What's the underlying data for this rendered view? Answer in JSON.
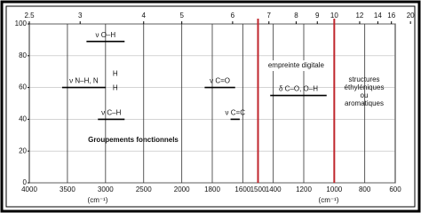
{
  "chart_data": {
    "type": "range",
    "xlabel": "(cm⁻¹)",
    "xlim": [
      4000,
      600
    ],
    "x_scale_break": 2000,
    "xticks": [
      4000,
      3500,
      3000,
      2500,
      2000,
      1800,
      1600,
      1500,
      1400,
      1200,
      1000,
      800,
      600
    ],
    "x2ticks": [
      2.5,
      3,
      4,
      5,
      6,
      7,
      8,
      9,
      10,
      12,
      14,
      16,
      20
    ],
    "ylim": [
      0,
      100
    ],
    "yticks": [
      0,
      20,
      40,
      60,
      80,
      100
    ],
    "grid": true,
    "color": "#000000",
    "marker_color": "#c0262d",
    "markers": [
      1500,
      1000
    ],
    "series": [
      {
        "name": "ν O–H",
        "x": [
          3250,
          2750
        ],
        "y": 89
      },
      {
        "name": "ν N–H, N",
        "x": [
          3570,
          3000
        ],
        "y": 60
      },
      {
        "name": "ν C–H",
        "x": [
          3100,
          2750
        ],
        "y": 40
      },
      {
        "name": "ν C=O",
        "x": [
          1850,
          1650
        ],
        "y": 60
      },
      {
        "name": "ν C=C",
        "x": [
          1680,
          1620
        ],
        "y": 40
      },
      {
        "name": "δ C–O, O–H",
        "x": [
          1420,
          1050
        ],
        "y": 55
      }
    ],
    "nh_marks": [
      "H",
      "H"
    ],
    "annotations": [
      "empreinte digitale",
      "Groupements fonctionnels",
      "structures",
      "éthyléniques",
      "ou",
      "aromatiques"
    ]
  }
}
